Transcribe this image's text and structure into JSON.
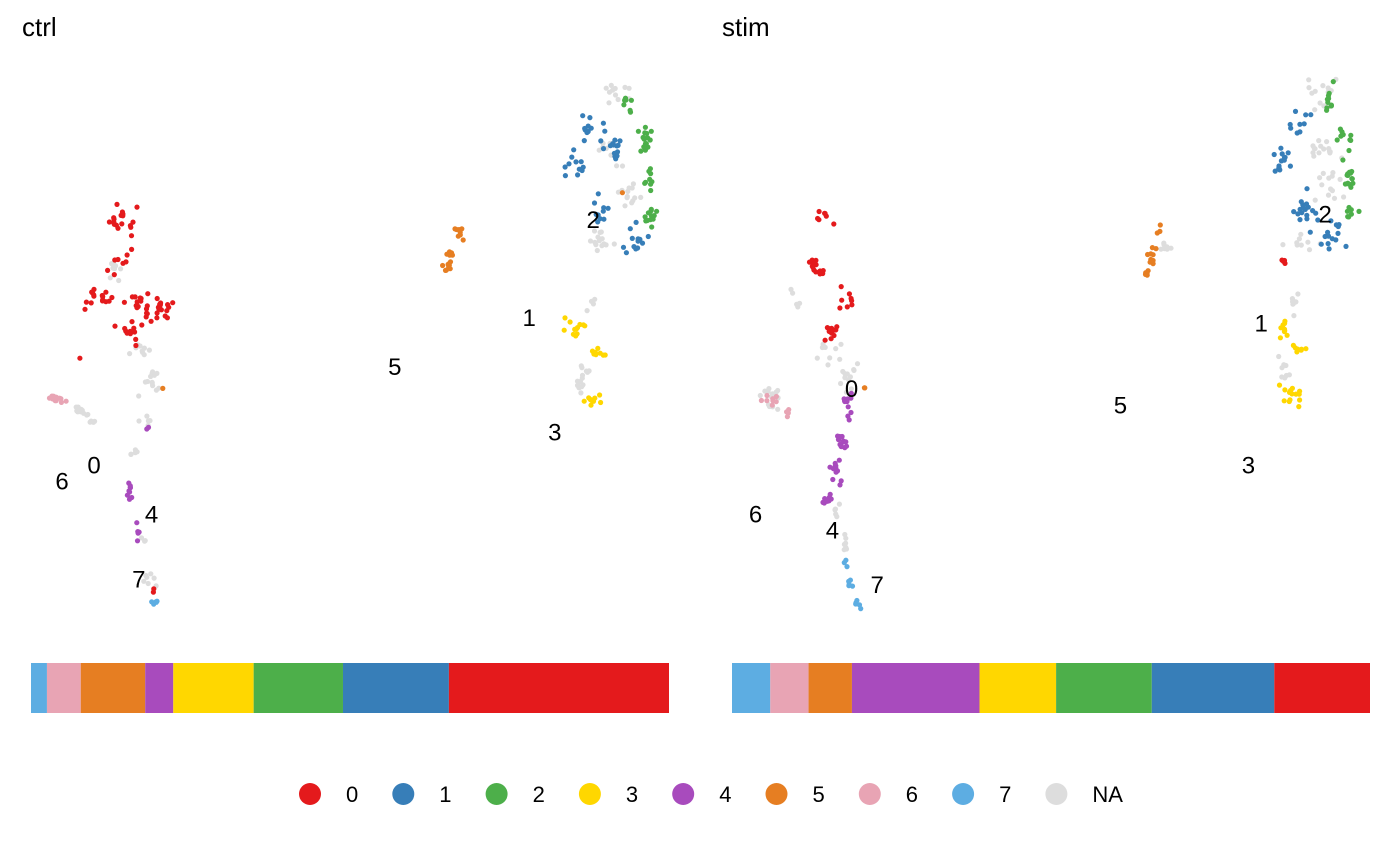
{
  "chart_data": {
    "type": "scatter",
    "legend_position": "bottom",
    "grid": false,
    "axes_visible": false,
    "clusters": [
      "0",
      "1",
      "2",
      "3",
      "4",
      "5",
      "6",
      "7",
      "NA"
    ],
    "colors": {
      "0": "#e41a1c",
      "1": "#377eb8",
      "2": "#4daf4a",
      "3": "#ffd700",
      "4": "#a84bbd",
      "5": "#e67e22",
      "6": "#e8a4b4",
      "7": "#5dade2",
      "NA": "#dddddd"
    },
    "panels": [
      {
        "title": "ctrl",
        "cluster_labels": [
          {
            "label": "0",
            "x": 0.1,
            "y": 0.29
          },
          {
            "label": "1",
            "x": 0.78,
            "y": 0.56
          },
          {
            "label": "2",
            "x": 0.88,
            "y": 0.74
          },
          {
            "label": "3",
            "x": 0.82,
            "y": 0.35
          },
          {
            "label": "4",
            "x": 0.19,
            "y": 0.2
          },
          {
            "label": "5",
            "x": 0.57,
            "y": 0.47
          },
          {
            "label": "6",
            "x": 0.05,
            "y": 0.26
          },
          {
            "label": "7",
            "x": 0.17,
            "y": 0.08
          }
        ],
        "composition": [
          {
            "cluster": "7",
            "fraction": 0.025
          },
          {
            "cluster": "6",
            "fraction": 0.053
          },
          {
            "cluster": "5",
            "fraction": 0.101
          },
          {
            "cluster": "4",
            "fraction": 0.044
          },
          {
            "cluster": "3",
            "fraction": 0.126
          },
          {
            "cluster": "2",
            "fraction": 0.14
          },
          {
            "cluster": "1",
            "fraction": 0.166
          },
          {
            "cluster": "0",
            "fraction": 0.345
          }
        ]
      },
      {
        "title": "stim",
        "cluster_labels": [
          {
            "label": "0",
            "x": 0.19,
            "y": 0.43
          },
          {
            "label": "1",
            "x": 0.83,
            "y": 0.55
          },
          {
            "label": "2",
            "x": 0.93,
            "y": 0.75
          },
          {
            "label": "3",
            "x": 0.81,
            "y": 0.29
          },
          {
            "label": "4",
            "x": 0.16,
            "y": 0.17
          },
          {
            "label": "5",
            "x": 0.61,
            "y": 0.4
          },
          {
            "label": "6",
            "x": 0.04,
            "y": 0.2
          },
          {
            "label": "7",
            "x": 0.23,
            "y": 0.07
          }
        ],
        "composition": [
          {
            "cluster": "7",
            "fraction": 0.06
          },
          {
            "cluster": "6",
            "fraction": 0.06
          },
          {
            "cluster": "5",
            "fraction": 0.068
          },
          {
            "cluster": "4",
            "fraction": 0.2
          },
          {
            "cluster": "3",
            "fraction": 0.12
          },
          {
            "cluster": "2",
            "fraction": 0.15
          },
          {
            "cluster": "1",
            "fraction": 0.192
          },
          {
            "cluster": "0",
            "fraction": 0.15
          }
        ]
      }
    ]
  }
}
